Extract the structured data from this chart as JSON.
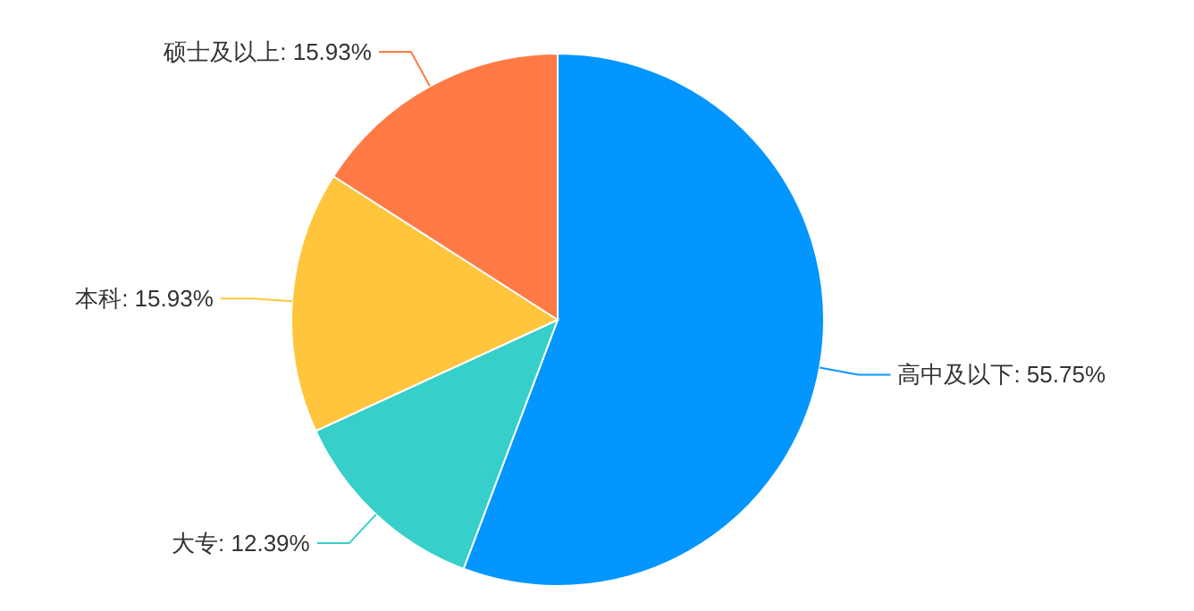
{
  "chart_data": {
    "type": "pie",
    "categories": [
      "高中及以下",
      "大专",
      "本科",
      "硕士及以上"
    ],
    "values": [
      55.75,
      12.39,
      15.93,
      15.93
    ],
    "colors": [
      "#0396ff",
      "#36cfc9",
      "#ffc53d",
      "#ff7a45"
    ],
    "value_labels": [
      "55.75%",
      "12.39%",
      "15.93%",
      "15.93%"
    ]
  }
}
